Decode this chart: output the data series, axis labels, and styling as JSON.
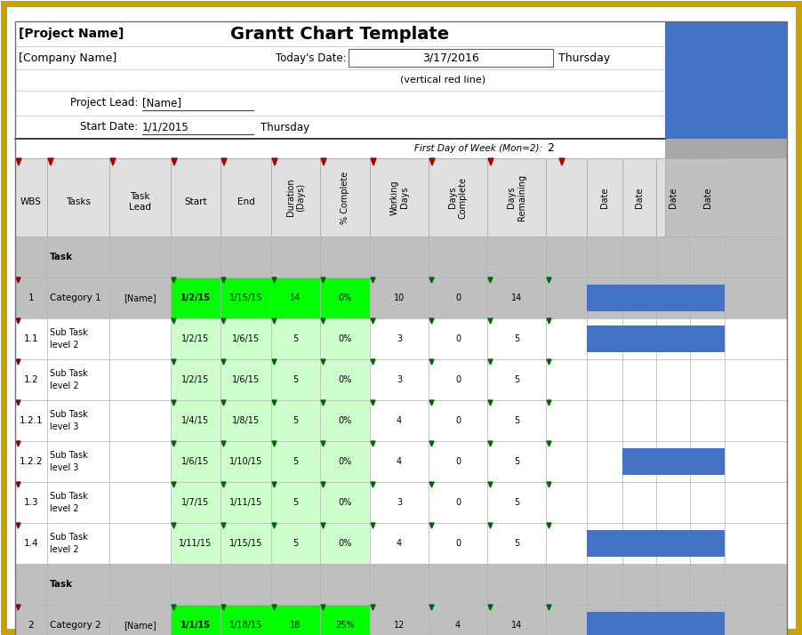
{
  "title": "Grantt Chart Template",
  "blue": "#4472c4",
  "green_bright": "#00ff00",
  "green_light": "#ccffcc",
  "gray_header": "#c0c0c0",
  "gray_row": "#bfbfbf",
  "white": "#ffffff",
  "gold_border": "#c8a000",
  "col_header_bg": "#d9d9d9",
  "rows": [
    {
      "wbs": "",
      "task": "Task",
      "task2": "",
      "lead": "",
      "start": "",
      "end": "",
      "dur": "",
      "pct": "",
      "wdays": "",
      "dcmp": "",
      "drem": "",
      "start_green": false,
      "row_bg": "gray",
      "blue_bars": []
    },
    {
      "wbs": "1",
      "task": "Category 1",
      "task2": "",
      "lead": "[Name]",
      "start": "1/2/15",
      "end": "1/15/15",
      "dur": "14",
      "pct": "0%",
      "wdays": "10",
      "dcmp": "0",
      "drem": "14",
      "start_green": true,
      "row_bg": "gray",
      "blue_bars": [
        0,
        1,
        2,
        3
      ]
    },
    {
      "wbs": "1.1",
      "task": "Sub Task",
      "task2": "level 2",
      "lead": "",
      "start": "1/2/15",
      "end": "1/6/15",
      "dur": "5",
      "pct": "0%",
      "wdays": "3",
      "dcmp": "0",
      "drem": "5",
      "start_green": true,
      "row_bg": "white",
      "blue_bars": [
        0,
        1,
        2,
        3
      ]
    },
    {
      "wbs": "1.2",
      "task": "Sub Task",
      "task2": "level 2",
      "lead": "",
      "start": "1/2/15",
      "end": "1/6/15",
      "dur": "5",
      "pct": "0%",
      "wdays": "3",
      "dcmp": "0",
      "drem": "5",
      "start_green": true,
      "row_bg": "white",
      "blue_bars": []
    },
    {
      "wbs": "1.2.1",
      "task": "Sub Task",
      "task2": "level 3",
      "lead": "",
      "start": "1/4/15",
      "end": "1/8/15",
      "dur": "5",
      "pct": "0%",
      "wdays": "4",
      "dcmp": "0",
      "drem": "5",
      "start_green": true,
      "row_bg": "white",
      "blue_bars": []
    },
    {
      "wbs": "1.2.2",
      "task": "Sub Task",
      "task2": "level 3",
      "lead": "",
      "start": "1/6/15",
      "end": "1/10/15",
      "dur": "5",
      "pct": "0%",
      "wdays": "4",
      "dcmp": "0",
      "drem": "5",
      "start_green": true,
      "row_bg": "white",
      "blue_bars": [
        1,
        2,
        3
      ]
    },
    {
      "wbs": "1.3",
      "task": "Sub Task",
      "task2": "level 2",
      "lead": "",
      "start": "1/7/15",
      "end": "1/11/15",
      "dur": "5",
      "pct": "0%",
      "wdays": "3",
      "dcmp": "0",
      "drem": "5",
      "start_green": true,
      "row_bg": "white",
      "blue_bars": []
    },
    {
      "wbs": "1.4",
      "task": "Sub Task",
      "task2": "level 2",
      "lead": "",
      "start": "1/11/15",
      "end": "1/15/15",
      "dur": "5",
      "pct": "0%",
      "wdays": "4",
      "dcmp": "0",
      "drem": "5",
      "start_green": true,
      "row_bg": "white",
      "blue_bars": [
        0,
        1,
        2,
        3
      ]
    },
    {
      "wbs": "",
      "task": "Task",
      "task2": "",
      "lead": "",
      "start": "",
      "end": "",
      "dur": "",
      "pct": "",
      "wdays": "",
      "dcmp": "",
      "drem": "",
      "start_green": false,
      "row_bg": "gray",
      "blue_bars": []
    },
    {
      "wbs": "2",
      "task": "Category 2",
      "task2": "",
      "lead": "[Name]",
      "start": "1/1/15",
      "end": "1/18/15",
      "dur": "18",
      "pct": "25%",
      "wdays": "12",
      "dcmp": "4",
      "drem": "14",
      "start_green": true,
      "row_bg": "gray",
      "blue_bars": [
        0,
        1,
        2,
        3
      ]
    }
  ]
}
